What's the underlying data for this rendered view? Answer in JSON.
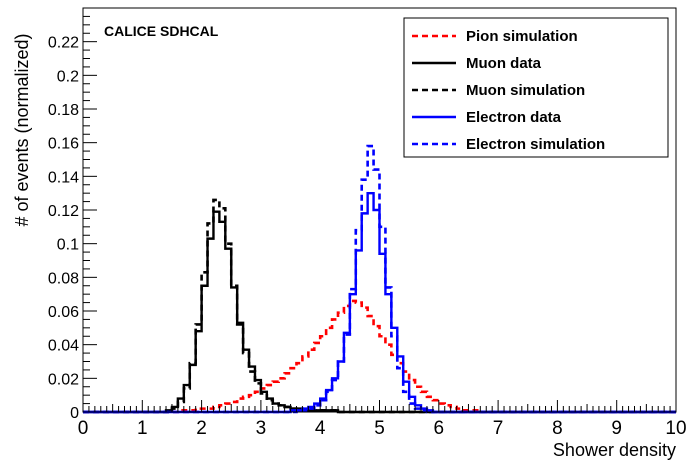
{
  "chart_data": {
    "type": "histogram",
    "annotation": "CALICE SDHCAL",
    "xlabel": "Shower density",
    "ylabel": "# of events (normalized)",
    "xlim": [
      0,
      10
    ],
    "ylim": [
      0,
      0.24
    ],
    "xticks": [
      0,
      1,
      2,
      3,
      4,
      5,
      6,
      7,
      8,
      9,
      10
    ],
    "xtick_labels": [
      "0",
      "1",
      "2",
      "3",
      "4",
      "5",
      "6",
      "7",
      "8",
      "9",
      "10"
    ],
    "yticks": [
      0,
      0.02,
      0.04,
      0.06,
      0.08,
      0.1,
      0.12,
      0.14,
      0.16,
      0.18,
      0.2,
      0.22
    ],
    "ytick_labels": [
      "0",
      "0.02",
      "0.04",
      "0.06",
      "0.08",
      "0.1",
      "0.12",
      "0.14",
      "0.16",
      "0.18",
      "0.2",
      "0.22"
    ],
    "bin_width": 0.1,
    "bin_start": 0,
    "grid": false,
    "legend_position": "top-right",
    "series": [
      {
        "name": "Pion simulation",
        "color": "#ff0000",
        "style": "dashed",
        "values": [
          0,
          0,
          0,
          0,
          0,
          0,
          0,
          0,
          0,
          0,
          0,
          0,
          0,
          0,
          0,
          0,
          0.001,
          0.001,
          0.001,
          0.002,
          0.002,
          0.002,
          0.003,
          0.004,
          0.005,
          0.006,
          0.008,
          0.009,
          0.01,
          0.012,
          0.014,
          0.016,
          0.018,
          0.02,
          0.023,
          0.026,
          0.029,
          0.033,
          0.037,
          0.041,
          0.045,
          0.05,
          0.055,
          0.059,
          0.063,
          0.066,
          0.065,
          0.062,
          0.057,
          0.051,
          0.045,
          0.04,
          0.034,
          0.029,
          0.024,
          0.019,
          0.015,
          0.012,
          0.009,
          0.007,
          0.005,
          0.004,
          0.003,
          0.002,
          0.001,
          0.001,
          0.001,
          0,
          0,
          0,
          0,
          0,
          0,
          0,
          0,
          0,
          0,
          0,
          0,
          0,
          0,
          0,
          0,
          0,
          0,
          0,
          0,
          0,
          0,
          0,
          0,
          0,
          0,
          0,
          0,
          0,
          0,
          0,
          0,
          0
        ]
      },
      {
        "name": "Muon data",
        "color": "#000000",
        "style": "solid",
        "values": [
          0,
          0,
          0,
          0,
          0,
          0,
          0,
          0,
          0,
          0,
          0,
          0,
          0,
          0,
          0.001,
          0.003,
          0.008,
          0.016,
          0.028,
          0.048,
          0.075,
          0.103,
          0.119,
          0.113,
          0.097,
          0.074,
          0.053,
          0.037,
          0.027,
          0.019,
          0.012,
          0.008,
          0.005,
          0.004,
          0.003,
          0.002,
          0.002,
          0.001,
          0.001,
          0.001,
          0.001,
          0.001,
          0.001,
          0,
          0,
          0,
          0,
          0,
          0,
          0,
          0,
          0,
          0,
          0,
          0,
          0,
          0,
          0,
          0,
          0,
          0,
          0,
          0,
          0,
          0,
          0,
          0,
          0,
          0,
          0,
          0,
          0,
          0,
          0,
          0,
          0,
          0,
          0,
          0,
          0,
          0,
          0,
          0,
          0,
          0,
          0,
          0,
          0,
          0,
          0,
          0,
          0,
          0,
          0,
          0,
          0,
          0,
          0,
          0,
          0
        ]
      },
      {
        "name": "Muon simulation",
        "color": "#000000",
        "style": "dashed",
        "values": [
          0,
          0,
          0,
          0,
          0,
          0,
          0,
          0,
          0,
          0,
          0,
          0,
          0,
          0,
          0,
          0.002,
          0.006,
          0.014,
          0.029,
          0.052,
          0.083,
          0.112,
          0.126,
          0.121,
          0.1,
          0.075,
          0.052,
          0.035,
          0.024,
          0.017,
          0.011,
          0.007,
          0.005,
          0.004,
          0.003,
          0.002,
          0.002,
          0.001,
          0.001,
          0.001,
          0.001,
          0.001,
          0.001,
          0,
          0,
          0,
          0,
          0,
          0,
          0,
          0,
          0,
          0,
          0,
          0,
          0,
          0,
          0,
          0,
          0,
          0,
          0,
          0,
          0,
          0,
          0,
          0,
          0,
          0,
          0,
          0,
          0,
          0,
          0,
          0,
          0,
          0,
          0,
          0,
          0,
          0,
          0,
          0,
          0,
          0,
          0,
          0,
          0,
          0,
          0,
          0,
          0,
          0,
          0,
          0,
          0,
          0,
          0,
          0,
          0
        ]
      },
      {
        "name": "Electron data",
        "color": "#0000ff",
        "style": "solid",
        "values": [
          0,
          0,
          0,
          0,
          0,
          0,
          0,
          0,
          0,
          0,
          0,
          0,
          0,
          0,
          0,
          0,
          0,
          0,
          0,
          0,
          0,
          0,
          0,
          0,
          0,
          0,
          0,
          0,
          0,
          0,
          0,
          0,
          0,
          0,
          0,
          0.001,
          0.001,
          0.002,
          0.003,
          0.005,
          0.008,
          0.013,
          0.02,
          0.03,
          0.047,
          0.07,
          0.096,
          0.118,
          0.13,
          0.12,
          0.094,
          0.07,
          0.05,
          0.033,
          0.018,
          0.009,
          0.004,
          0.002,
          0.001,
          0,
          0,
          0,
          0,
          0,
          0,
          0,
          0,
          0,
          0,
          0,
          0,
          0,
          0,
          0,
          0,
          0,
          0,
          0,
          0,
          0,
          0,
          0,
          0,
          0,
          0,
          0,
          0,
          0,
          0,
          0,
          0,
          0,
          0,
          0,
          0,
          0,
          0,
          0,
          0,
          0
        ]
      },
      {
        "name": "Electron simulation",
        "color": "#0000ff",
        "style": "dashed",
        "values": [
          0,
          0,
          0,
          0,
          0,
          0,
          0,
          0,
          0,
          0,
          0,
          0,
          0,
          0,
          0,
          0,
          0,
          0,
          0,
          0,
          0,
          0,
          0,
          0,
          0,
          0,
          0,
          0,
          0,
          0,
          0,
          0,
          0,
          0,
          0,
          0,
          0.001,
          0.001,
          0.002,
          0.004,
          0.007,
          0.012,
          0.019,
          0.03,
          0.046,
          0.073,
          0.108,
          0.138,
          0.158,
          0.144,
          0.11,
          0.074,
          0.045,
          0.026,
          0.012,
          0.005,
          0.002,
          0.001,
          0,
          0,
          0,
          0,
          0,
          0,
          0,
          0,
          0,
          0,
          0,
          0,
          0,
          0,
          0,
          0,
          0,
          0,
          0,
          0,
          0,
          0,
          0,
          0,
          0,
          0,
          0,
          0,
          0,
          0,
          0,
          0,
          0,
          0,
          0,
          0,
          0,
          0,
          0,
          0,
          0,
          0
        ]
      }
    ]
  }
}
